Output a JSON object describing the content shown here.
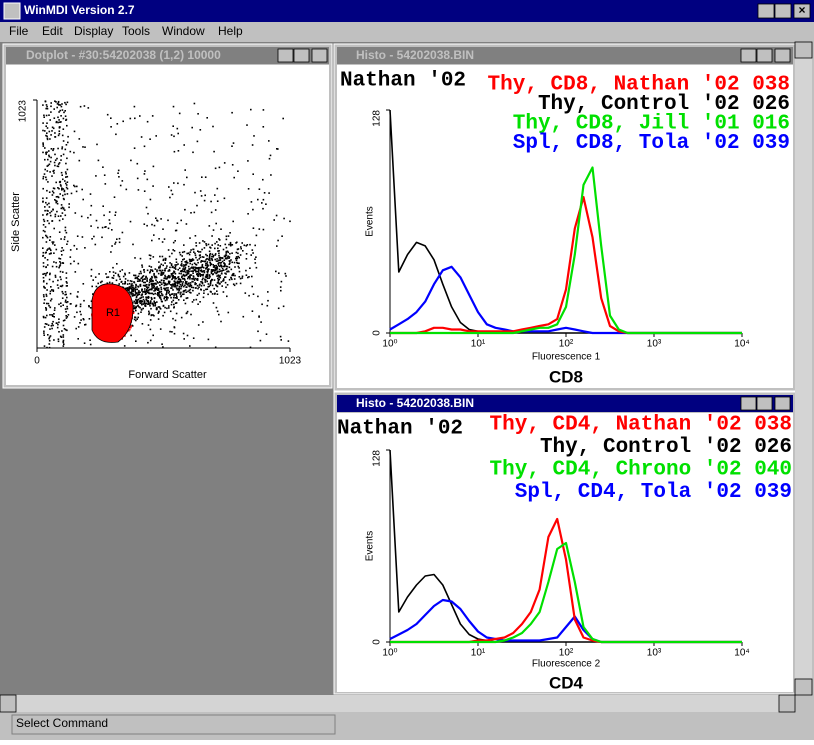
{
  "window_title": "WinMDI Version 2.7",
  "menu": [
    "File",
    "Edit",
    "Display",
    "Tools",
    "Window",
    "Help"
  ],
  "status": "Select Command",
  "dotplot": {
    "title": "Dotplot - #30:54202038 (1,2) 10000",
    "chart_data": {
      "type": "scatter",
      "xlabel": "Forward Scatter",
      "ylabel": "Side Scatter",
      "region_label": "R1",
      "xlim": [
        0,
        1023
      ],
      "ylim": [
        0,
        1023
      ],
      "xticks": [
        0,
        1023
      ],
      "yticks": [
        1023
      ]
    }
  },
  "histograms": [
    {
      "title": "Histo - 54202038.BIN",
      "sample": "Nathan '02",
      "chart_data": {
        "type": "line",
        "xlabel": "Fluorescence 1",
        "ylabel": "Events",
        "parameter": "CD8",
        "log_scale": true,
        "xlim": [
          1,
          10000
        ],
        "ylim": [
          0,
          128
        ],
        "yticks": [
          0,
          128
        ],
        "xticks": [
          {
            "value": 1,
            "label": "10⁰"
          },
          {
            "value": 10,
            "label": "10¹"
          },
          {
            "value": 100,
            "label": "10²"
          },
          {
            "value": 1000,
            "label": "10³"
          },
          {
            "value": 10000,
            "label": "10⁴"
          }
        ],
        "x": [
          1,
          1.26,
          1.58,
          2,
          2.51,
          3.16,
          3.98,
          5.01,
          6.31,
          7.94,
          10,
          12.6,
          15.8,
          20,
          25.1,
          31.6,
          39.8,
          50.1,
          63.1,
          79.4,
          100,
          126,
          158,
          200,
          251,
          316,
          398,
          501,
          631,
          794,
          1000,
          1260,
          1580,
          2000,
          2510,
          3160,
          3980,
          5010,
          6310,
          7940,
          10000
        ],
        "series": [
          {
            "name": "Thy, CD8, Nathan '02 038",
            "color": "#ff0000",
            "values": [
              0,
              0,
              0,
              0,
              1,
              3,
              3,
              2,
              2,
              1,
              1,
              1,
              1,
              1,
              1,
              2,
              3,
              4,
              5,
              8,
              25,
              60,
              78,
              55,
              20,
              4,
              1,
              0,
              0,
              0,
              0,
              0,
              0,
              0,
              0,
              0,
              0,
              0,
              0,
              0,
              0
            ]
          },
          {
            "name": "Thy, Control '02 026",
            "color": "#000000",
            "values": [
              128,
              35,
              45,
              52,
              50,
              42,
              28,
              15,
              6,
              2,
              1,
              0,
              0,
              0,
              0,
              0,
              0,
              0,
              0,
              0,
              0,
              0,
              0,
              0,
              0,
              0,
              0,
              0,
              0,
              0,
              0,
              0,
              0,
              0,
              0,
              0,
              0,
              0,
              0,
              0,
              0
            ]
          },
          {
            "name": "Thy, CD8, Jill '01 016",
            "color": "#00e000",
            "values": [
              0,
              0,
              0,
              0,
              0,
              0,
              0,
              0,
              0,
              0,
              0,
              0,
              0,
              0,
              0,
              1,
              2,
              3,
              3,
              5,
              15,
              45,
              85,
              95,
              50,
              10,
              2,
              0,
              0,
              0,
              0,
              0,
              0,
              0,
              0,
              0,
              0,
              0,
              0,
              0,
              0
            ]
          },
          {
            "name": "Spl, CD8, Tola '02 039",
            "color": "#0000ff",
            "values": [
              2,
              5,
              8,
              12,
              18,
              28,
              36,
              38,
              32,
              22,
              12,
              5,
              3,
              2,
              1,
              1,
              1,
              1,
              1,
              2,
              3,
              2,
              1,
              0,
              0,
              0,
              0,
              0,
              0,
              0,
              0,
              0,
              0,
              0,
              0,
              0,
              0,
              0,
              0,
              0,
              0
            ]
          }
        ]
      }
    },
    {
      "title": "Histo - 54202038.BIN",
      "sample": "Nathan '02",
      "chart_data": {
        "type": "line",
        "xlabel": "Fluorescence 2",
        "ylabel": "Events",
        "parameter": "CD4",
        "log_scale": true,
        "xlim": [
          1,
          10000
        ],
        "ylim": [
          0,
          128
        ],
        "yticks": [
          0,
          128
        ],
        "xticks": [
          {
            "value": 1,
            "label": "10⁰"
          },
          {
            "value": 10,
            "label": "10¹"
          },
          {
            "value": 100,
            "label": "10²"
          },
          {
            "value": 1000,
            "label": "10³"
          },
          {
            "value": 10000,
            "label": "10⁴"
          }
        ],
        "x": [
          1,
          1.26,
          1.58,
          2,
          2.51,
          3.16,
          3.98,
          5.01,
          6.31,
          7.94,
          10,
          12.6,
          15.8,
          20,
          25.1,
          31.6,
          39.8,
          50.1,
          63.1,
          79.4,
          100,
          126,
          158,
          200,
          251,
          316,
          398,
          501,
          631,
          794,
          1000,
          1260,
          1580,
          2000,
          2510,
          3160,
          3980,
          5010,
          6310,
          7940,
          10000
        ],
        "series": [
          {
            "name": "Thy, CD4, Nathan '02 038",
            "color": "#ff0000",
            "values": [
              0,
              0,
              0,
              0,
              0,
              0,
              0,
              0,
              0,
              0,
              1,
              1,
              2,
              3,
              6,
              12,
              20,
              35,
              70,
              82,
              55,
              15,
              3,
              1,
              0,
              0,
              0,
              0,
              0,
              0,
              0,
              0,
              0,
              0,
              0,
              0,
              0,
              0,
              0,
              0,
              0
            ]
          },
          {
            "name": "Thy, Control '02 026",
            "color": "#000000",
            "values": [
              128,
              20,
              30,
              38,
              44,
              45,
              38,
              25,
              12,
              5,
              2,
              1,
              0,
              0,
              0,
              0,
              0,
              0,
              0,
              0,
              0,
              0,
              0,
              0,
              0,
              0,
              0,
              0,
              0,
              0,
              0,
              0,
              0,
              0,
              0,
              0,
              0,
              0,
              0,
              0,
              0
            ]
          },
          {
            "name": "Thy, CD4, Chrono '02 040",
            "color": "#00e000",
            "values": [
              0,
              0,
              0,
              0,
              0,
              0,
              0,
              0,
              0,
              0,
              0,
              0,
              0,
              1,
              3,
              6,
              12,
              20,
              40,
              62,
              66,
              40,
              10,
              2,
              0,
              0,
              0,
              0,
              0,
              0,
              0,
              0,
              0,
              0,
              0,
              0,
              0,
              0,
              0,
              0,
              0
            ]
          },
          {
            "name": "Spl, CD4, Tola '02 039",
            "color": "#0000ff",
            "values": [
              2,
              5,
              8,
              12,
              18,
              24,
              28,
              27,
              22,
              14,
              7,
              3,
              2,
              1,
              1,
              1,
              1,
              1,
              2,
              3,
              10,
              17,
              8,
              2,
              0,
              0,
              0,
              0,
              0,
              0,
              0,
              0,
              0,
              0,
              0,
              0,
              0,
              0,
              0,
              0,
              0
            ]
          }
        ]
      }
    }
  ]
}
